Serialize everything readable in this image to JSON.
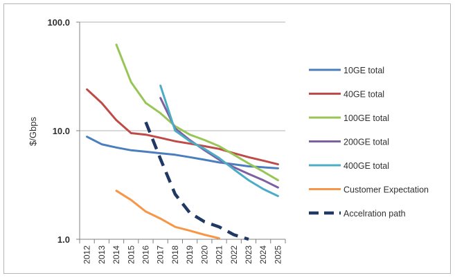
{
  "chart_data": {
    "type": "line",
    "title": "",
    "xlabel": "",
    "ylabel": "$/Gbps",
    "yscale": "log",
    "ylim": [
      1.0,
      100.0
    ],
    "y_ticks": [
      "1.0",
      "10.0",
      "100.0"
    ],
    "x": [
      "2012",
      "2013",
      "2014",
      "2015",
      "2016",
      "2017",
      "2018",
      "2019",
      "2020",
      "2021",
      "2022",
      "2023",
      "2024",
      "2025"
    ],
    "grid": "horizontal",
    "legend_position": "right",
    "series": [
      {
        "name": "10GE total",
        "color": "#4a7ebf",
        "dash": false,
        "values": [
          8.8,
          7.5,
          7.0,
          6.6,
          6.4,
          6.2,
          6.0,
          5.7,
          5.4,
          5.1,
          4.9,
          4.7,
          4.6,
          4.5
        ]
      },
      {
        "name": "40GE total",
        "color": "#be4b48",
        "dash": false,
        "values": [
          24.0,
          18.0,
          12.5,
          9.5,
          9.2,
          8.6,
          8.0,
          7.6,
          7.2,
          6.8,
          6.2,
          5.7,
          5.3,
          4.9
        ]
      },
      {
        "name": "100GE total",
        "color": "#98c656",
        "dash": false,
        "values": [
          null,
          null,
          62.0,
          28.0,
          18.0,
          14.5,
          11.0,
          9.2,
          8.2,
          7.2,
          6.0,
          5.0,
          4.2,
          3.5
        ]
      },
      {
        "name": "200GE total",
        "color": "#7e60a0",
        "dash": false,
        "values": [
          null,
          null,
          null,
          null,
          null,
          20.0,
          10.5,
          8.2,
          6.6,
          5.4,
          4.6,
          4.0,
          3.5,
          3.0
        ]
      },
      {
        "name": "400GE total",
        "color": "#4bacc6",
        "dash": false,
        "values": [
          null,
          null,
          null,
          null,
          null,
          26.0,
          10.0,
          8.0,
          6.8,
          5.6,
          4.4,
          3.5,
          2.9,
          2.5
        ]
      },
      {
        "name": "Customer Expectation",
        "color": "#f79646",
        "dash": false,
        "values": [
          null,
          null,
          2.8,
          2.3,
          1.8,
          1.55,
          1.3,
          1.2,
          1.1,
          1.02,
          null,
          null,
          null,
          null
        ]
      },
      {
        "name": "Accelration path",
        "color": "#1f3864",
        "dash": true,
        "values": [
          null,
          null,
          null,
          null,
          12.0,
          5.5,
          2.6,
          1.75,
          1.45,
          1.3,
          1.1,
          1.0,
          null,
          null
        ]
      }
    ]
  }
}
